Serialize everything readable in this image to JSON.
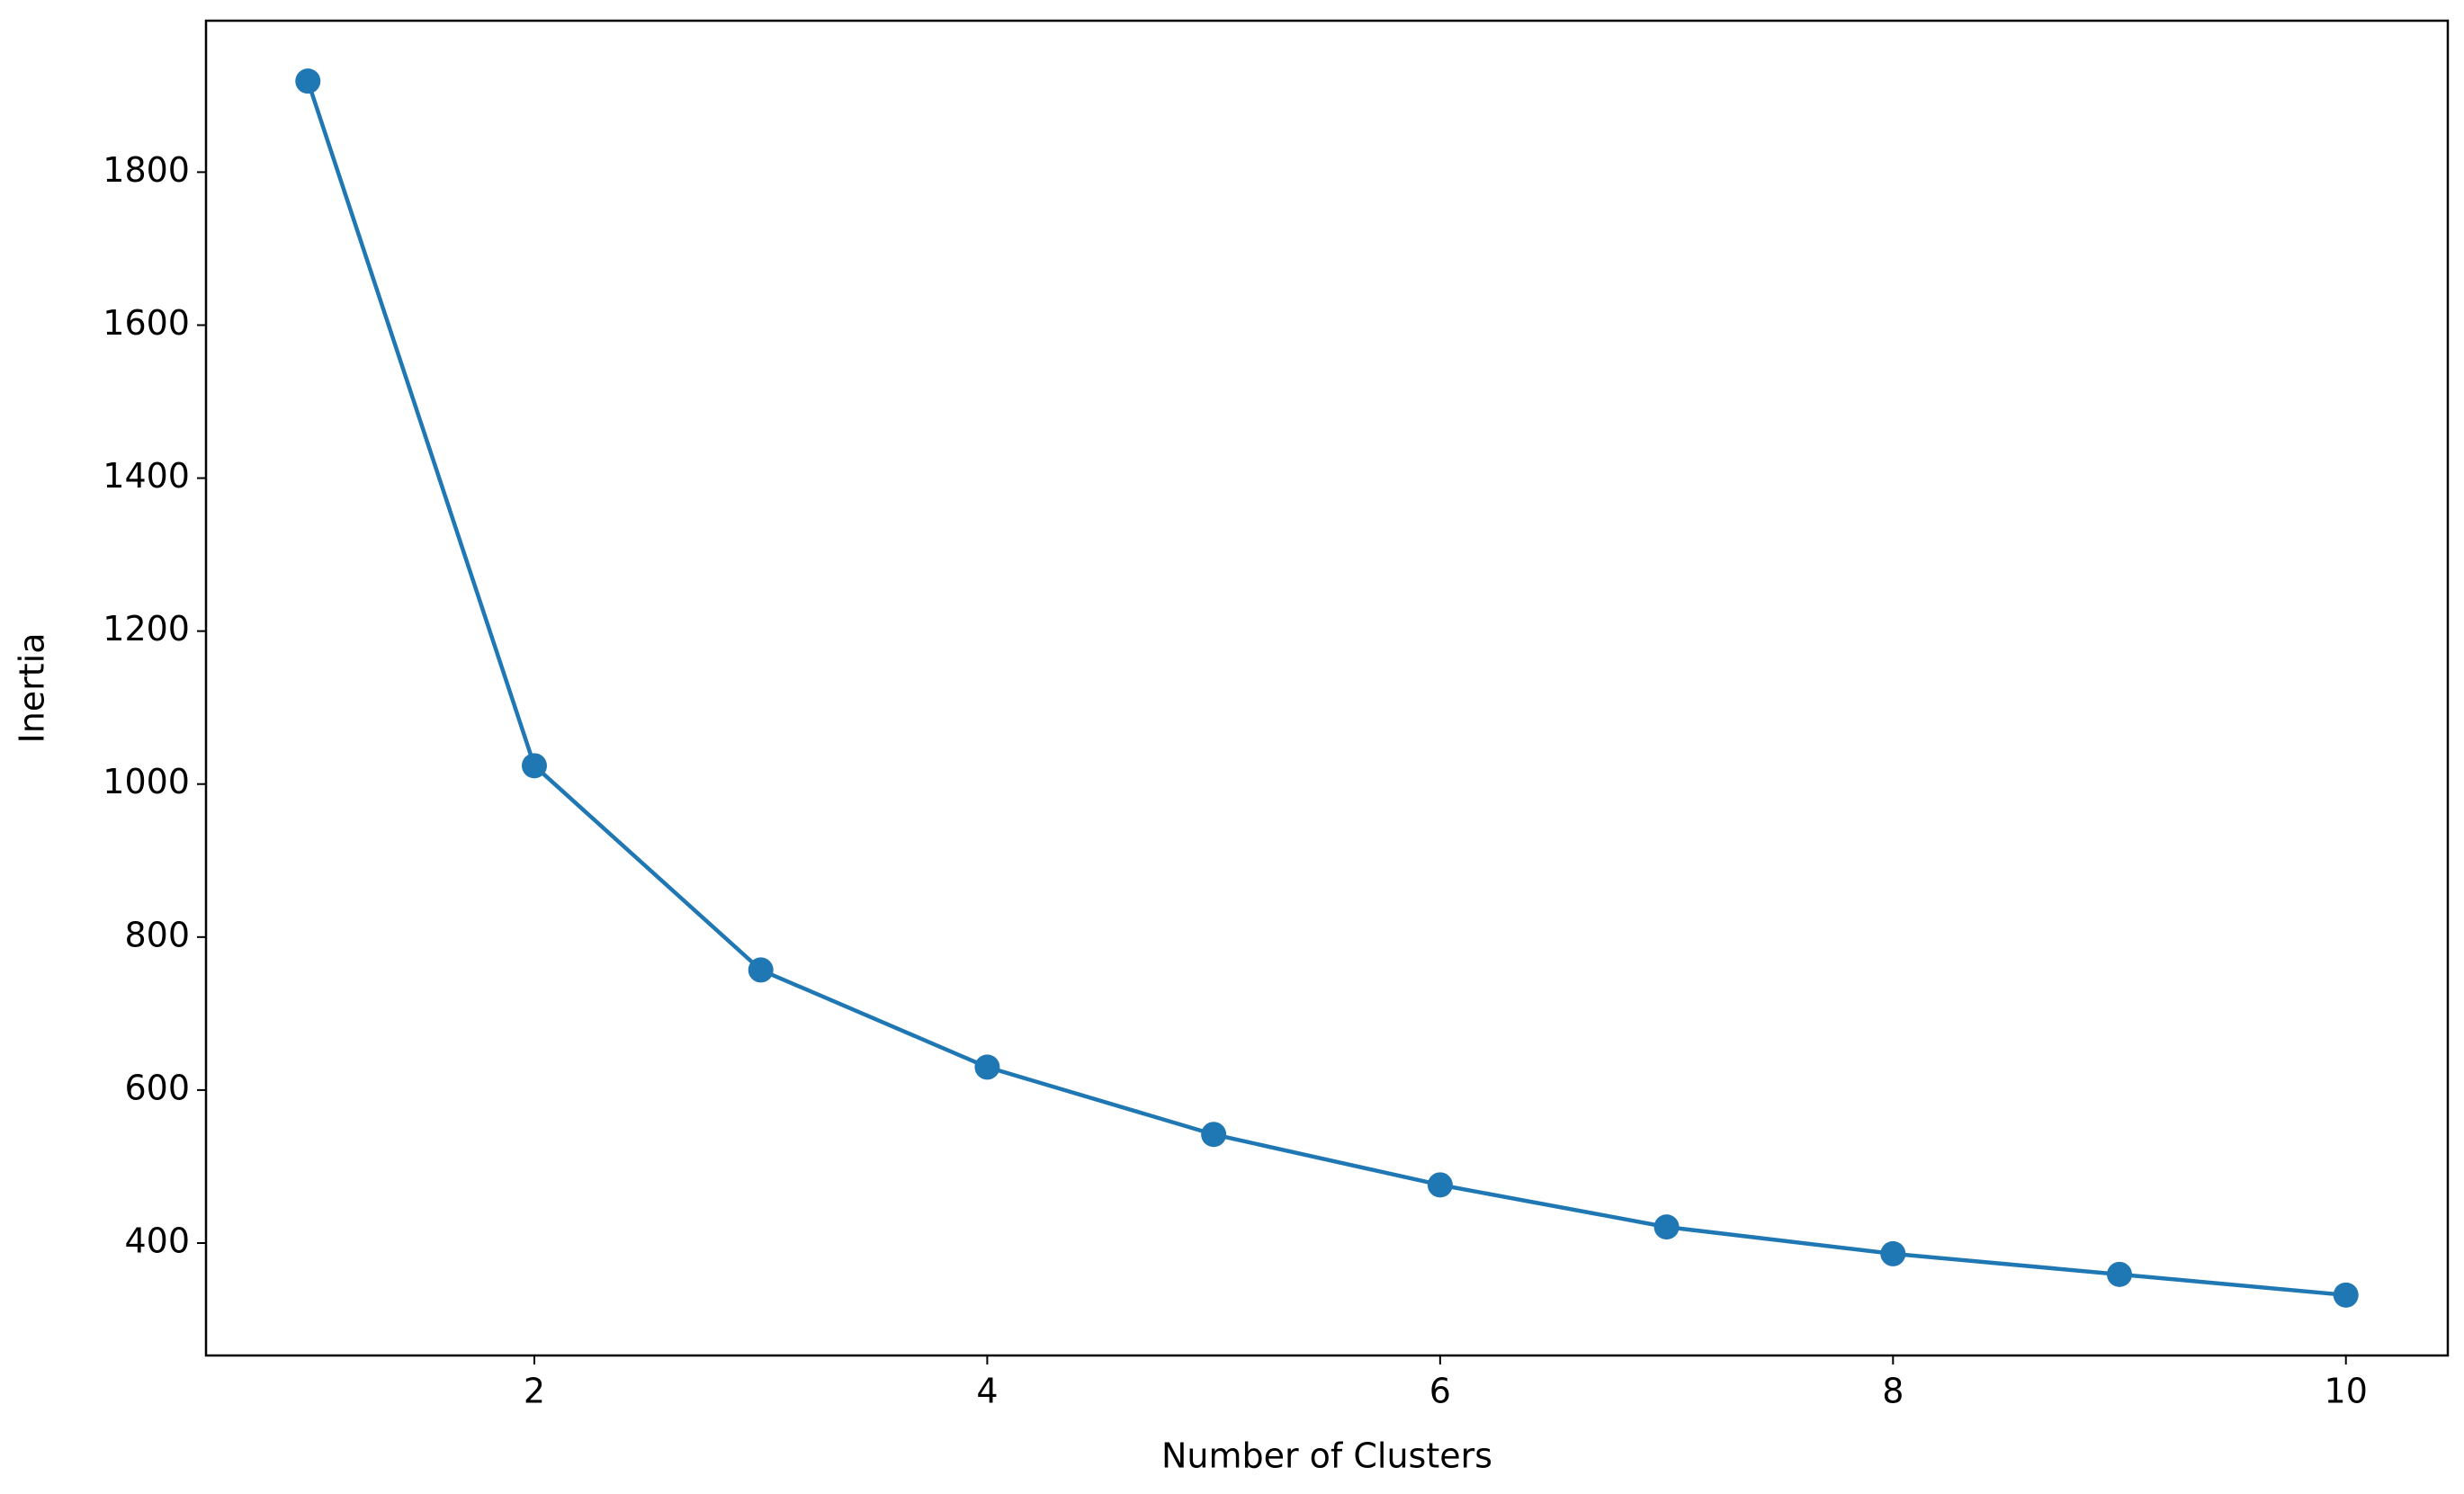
{
  "chart_data": {
    "type": "line",
    "x_label": "Number of Clusters",
    "y_label": "Inertia",
    "x": [
      1,
      2,
      3,
      4,
      5,
      6,
      7,
      8,
      9,
      10
    ],
    "values": [
      1919,
      1024,
      757,
      630,
      542,
      476,
      421,
      386,
      359,
      332
    ],
    "color": "#1f77b4",
    "xlim": [
      0.55,
      10.45
    ],
    "xticks": [
      2,
      4,
      6,
      8,
      10
    ],
    "ylim": [
      253,
      1998
    ],
    "yticks": [
      400,
      600,
      800,
      1000,
      1200,
      1400,
      1600,
      1800
    ],
    "grid": false,
    "markers": true
  }
}
